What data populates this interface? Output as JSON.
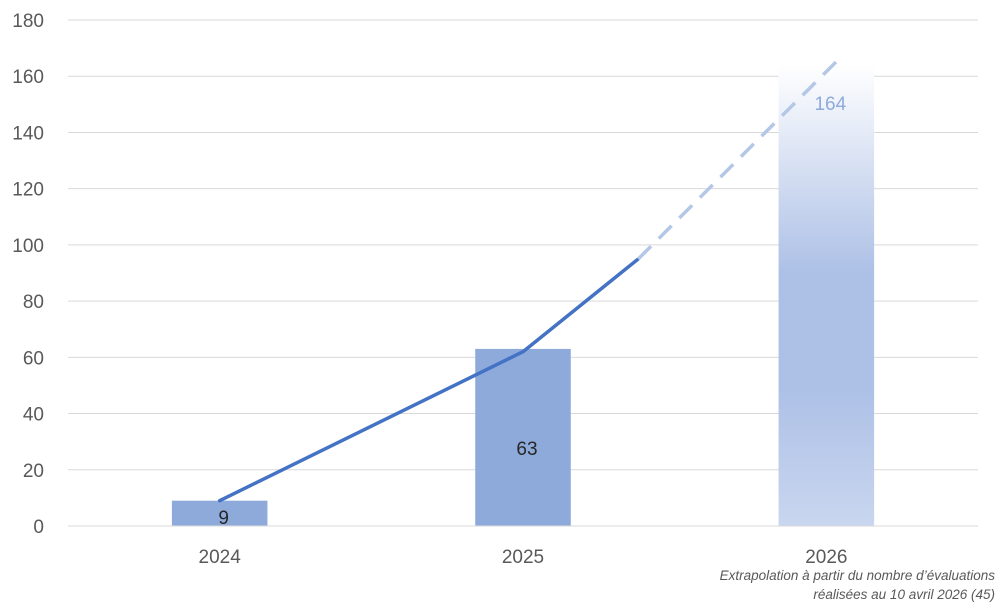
{
  "chart_data": {
    "type": "bar",
    "categories": [
      "2024",
      "2025",
      "2026"
    ],
    "values": [
      9,
      63,
      164
    ],
    "data_labels": [
      "9",
      "63",
      "164"
    ],
    "projected_category": "2026",
    "trend_line": {
      "solid": [
        {
          "x": 0,
          "y": 9
        },
        {
          "x": 1,
          "y": 62
        },
        {
          "x": 1.38,
          "y": 95
        }
      ],
      "dashed": [
        {
          "x": 1.38,
          "y": 95
        },
        {
          "x": 2.05,
          "y": 167
        }
      ]
    },
    "ylim": [
      0,
      180
    ],
    "yticks": [
      0,
      20,
      40,
      60,
      80,
      100,
      120,
      140,
      160,
      180
    ],
    "grid": true,
    "title": "",
    "xlabel": "",
    "ylabel": "",
    "colors": {
      "bar": "#8eaadb",
      "bar_projected_top": "#ffffff",
      "bar_projected_mid": "#adc0e6",
      "bar_projected_bottom": "#c9d6ef",
      "line": "#4472c4",
      "line_dashed": "#b4c7e7",
      "grid": "#d9d9d9",
      "projected_label": "#8eaadb",
      "label": "#262626"
    }
  },
  "footnote": {
    "line1": "Extrapolation à partir du nombre d’évaluations",
    "line2": "réalisées au 10 avril 2026 (45)"
  }
}
